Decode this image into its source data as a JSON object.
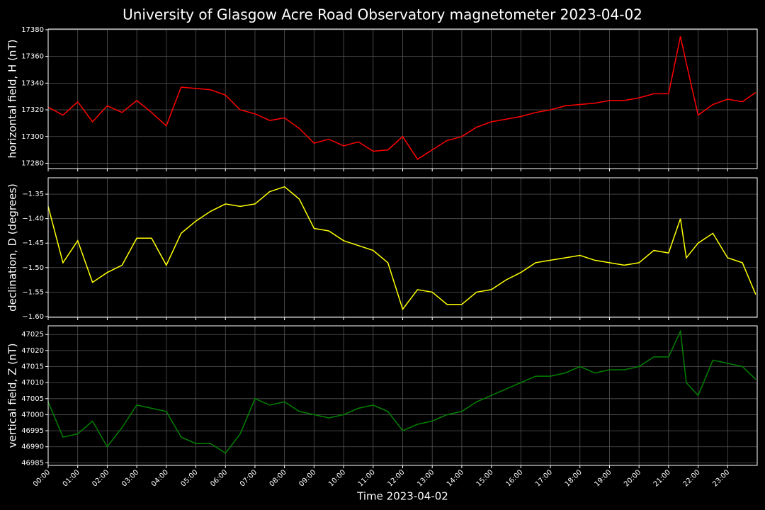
{
  "title": "University of Glasgow Acre Road Observatory magnetometer 2023-04-02",
  "chart_data": [
    {
      "type": "line",
      "ylabel": "horizontal field, H (nT)",
      "color": "#ff0000",
      "grid": true,
      "xlim": [
        0,
        24
      ],
      "ylim": [
        17276,
        17380.5
      ],
      "yticks": [
        17280,
        17300,
        17320,
        17340,
        17360,
        17380
      ],
      "x": [
        0,
        0.5,
        1,
        1.5,
        2,
        2.5,
        3,
        3.5,
        4,
        4.5,
        5,
        5.5,
        6,
        6.5,
        7,
        7.5,
        8,
        8.5,
        9,
        9.5,
        10,
        10.5,
        11,
        11.5,
        12,
        12.5,
        13,
        13.5,
        14,
        14.5,
        15,
        15.5,
        16,
        16.5,
        17,
        17.5,
        18,
        18.5,
        19,
        19.5,
        20,
        20.5,
        21,
        21.4,
        21.6,
        22,
        22.5,
        23,
        23.5,
        23.95
      ],
      "values": [
        17322,
        17316,
        17326,
        17311,
        17323,
        17318,
        17327,
        17318,
        17308,
        17337,
        17336,
        17335,
        17331,
        17320,
        17317,
        17312,
        17314,
        17306,
        17295,
        17298,
        17293,
        17296,
        17289,
        17290,
        17300,
        17283,
        17290,
        17297,
        17300,
        17307,
        17311,
        17313,
        17315,
        17318,
        17320,
        17323,
        17324,
        17325,
        17327,
        17327,
        17329,
        17332,
        17332,
        17375,
        17355,
        17316,
        17324,
        17328,
        17326,
        17333
      ]
    },
    {
      "type": "line",
      "ylabel": "declination, D (degrees)",
      "color": "#ffff00",
      "grid": true,
      "xlim": [
        0,
        24
      ],
      "ylim": [
        -1.6015,
        -1.3166
      ],
      "yticks": [
        {
          "value": -1.35,
          "label": "−1.35"
        },
        {
          "value": -1.4,
          "label": "−1.40"
        },
        {
          "value": -1.45,
          "label": "−1.45"
        },
        {
          "value": -1.5,
          "label": "−1.50"
        },
        {
          "value": -1.55,
          "label": "−1.55"
        },
        {
          "value": -1.6,
          "label": "−1.60"
        }
      ],
      "x": [
        0,
        0.5,
        1,
        1.5,
        2,
        2.5,
        3,
        3.5,
        4,
        4.5,
        5,
        5.5,
        6,
        6.5,
        7,
        7.5,
        8,
        8.5,
        9,
        9.5,
        10,
        10.5,
        11,
        11.5,
        12,
        12.5,
        13,
        13.5,
        14,
        14.5,
        15,
        15.5,
        16,
        16.5,
        17,
        17.5,
        18,
        18.5,
        19,
        19.5,
        20,
        20.5,
        21,
        21.4,
        21.6,
        22,
        22.5,
        23,
        23.5,
        23.95
      ],
      "values": [
        -1.375,
        -1.49,
        -1.445,
        -1.53,
        -1.51,
        -1.495,
        -1.44,
        -1.44,
        -1.495,
        -1.43,
        -1.405,
        -1.385,
        -1.37,
        -1.375,
        -1.37,
        -1.345,
        -1.335,
        -1.36,
        -1.42,
        -1.425,
        -1.445,
        -1.455,
        -1.465,
        -1.49,
        -1.585,
        -1.545,
        -1.55,
        -1.575,
        -1.575,
        -1.55,
        -1.545,
        -1.525,
        -1.51,
        -1.49,
        -1.485,
        -1.48,
        -1.475,
        -1.485,
        -1.49,
        -1.495,
        -1.49,
        -1.465,
        -1.47,
        -1.4,
        -1.48,
        -1.45,
        -1.43,
        -1.48,
        -1.49,
        -1.555
      ]
    },
    {
      "type": "line",
      "ylabel": "vertical field, Z (nT)",
      "color": "#008000",
      "grid": true,
      "xlim": [
        0,
        24
      ],
      "ylim": [
        46984.2,
        47027.7
      ],
      "yticks": [
        46985,
        46990,
        46995,
        47000,
        47005,
        47010,
        47015,
        47020,
        47025
      ],
      "xlabel": "Time 2023-04-02",
      "xticks": [
        {
          "value": 0,
          "label": "00:00"
        },
        {
          "value": 1,
          "label": "01:00"
        },
        {
          "value": 2,
          "label": "02:00"
        },
        {
          "value": 3,
          "label": "03:00"
        },
        {
          "value": 4,
          "label": "04:00"
        },
        {
          "value": 5,
          "label": "05:00"
        },
        {
          "value": 6,
          "label": "06:00"
        },
        {
          "value": 7,
          "label": "07:00"
        },
        {
          "value": 8,
          "label": "08:00"
        },
        {
          "value": 9,
          "label": "09:00"
        },
        {
          "value": 10,
          "label": "10:00"
        },
        {
          "value": 11,
          "label": "11:00"
        },
        {
          "value": 12,
          "label": "12:00"
        },
        {
          "value": 13,
          "label": "13:00"
        },
        {
          "value": 14,
          "label": "14:00"
        },
        {
          "value": 15,
          "label": "15:00"
        },
        {
          "value": 16,
          "label": "16:00"
        },
        {
          "value": 17,
          "label": "17:00"
        },
        {
          "value": 18,
          "label": "18:00"
        },
        {
          "value": 19,
          "label": "19:00"
        },
        {
          "value": 20,
          "label": "20:00"
        },
        {
          "value": 21,
          "label": "21:00"
        },
        {
          "value": 22,
          "label": "22:00"
        },
        {
          "value": 23,
          "label": "23:00"
        }
      ],
      "x": [
        0,
        0.5,
        1,
        1.5,
        2,
        2.5,
        3,
        3.5,
        4,
        4.5,
        5,
        5.5,
        6,
        6.5,
        7,
        7.5,
        8,
        8.5,
        9,
        9.5,
        10,
        10.5,
        11,
        11.5,
        12,
        12.5,
        13,
        13.5,
        14,
        14.5,
        15,
        15.5,
        16,
        16.5,
        17,
        17.5,
        18,
        18.5,
        19,
        19.5,
        20,
        20.5,
        21,
        21.4,
        21.6,
        22,
        22.5,
        23,
        23.5,
        23.95
      ],
      "values": [
        47004,
        46993,
        46994,
        46998,
        46990,
        46996,
        47003,
        47002,
        47001,
        46993,
        46991,
        46991,
        46988,
        46994,
        47005,
        47003,
        47004,
        47001,
        47000,
        46999,
        47000,
        47002,
        47003,
        47001,
        46995,
        46997,
        46998,
        47000,
        47001,
        47004,
        47006,
        47008,
        47010,
        47012,
        47012,
        47013,
        47015,
        47013,
        47014,
        47014,
        47015,
        47018,
        47018,
        47026,
        47010,
        47006,
        47017,
        47016,
        47015,
        47011
      ]
    }
  ]
}
